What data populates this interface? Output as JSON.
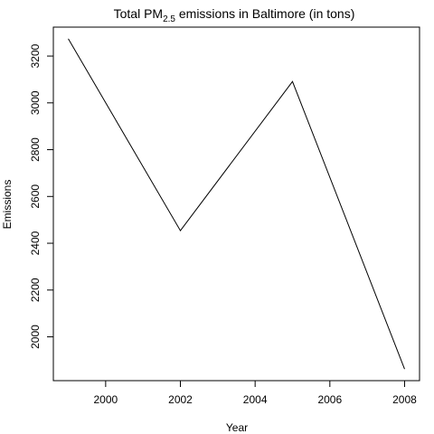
{
  "chart_data": {
    "type": "line",
    "title": {
      "prefix": "Total PM",
      "subscript": "2.5",
      "suffix": " emissions in Baltimore (in tons)"
    },
    "xlabel": "Year",
    "ylabel": "Emissions",
    "x": [
      1999,
      2002,
      2005,
      2008
    ],
    "series": [
      {
        "values": [
          3274.18,
          2453.916,
          3091.354,
          1862.282
        ]
      }
    ],
    "xlim": [
      1998.6,
      2008.4
    ],
    "ylim": [
      1812.7,
      3323.8
    ],
    "xticks": [
      2000,
      2002,
      2004,
      2006,
      2008
    ],
    "yticks": [
      2000,
      2200,
      2400,
      2600,
      2800,
      3000,
      3200
    ],
    "line_color": "#000000",
    "grid": false
  }
}
